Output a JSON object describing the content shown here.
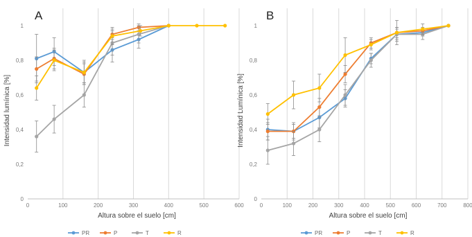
{
  "chart_data": [
    {
      "type": "line",
      "panel_label": "A",
      "xlabel": "Altura sobre el suelo [cm]",
      "ylabel": "Intensidad lumínica [%]",
      "xlim": [
        0,
        600
      ],
      "ylim": [
        0,
        1.1
      ],
      "xticks": [
        "0",
        "100",
        "200",
        "300",
        "400",
        "500",
        "600"
      ],
      "yticks": [
        "0",
        "0,2",
        "0,4",
        "0,6",
        "0,8",
        "1"
      ],
      "grid": "vertical",
      "legend_position": "bottom",
      "series": [
        {
          "name": "PR",
          "color": "#5B9BD5",
          "x": [
            25,
            75,
            160,
            240,
            315,
            400
          ],
          "y": [
            0.81,
            0.85,
            0.73,
            0.86,
            0.92,
            1.0
          ],
          "err": [
            0.14,
            0.08,
            0.07,
            0.07,
            0.05,
            0
          ]
        },
        {
          "name": "P",
          "color": "#ED7D31",
          "x": [
            25,
            75,
            160,
            240,
            315,
            400
          ],
          "y": [
            0.75,
            0.81,
            0.72,
            0.95,
            0.99,
            1.0
          ],
          "err": [
            0.07,
            0.06,
            0.06,
            0.03,
            0.02,
            0
          ]
        },
        {
          "name": "T",
          "color": "#A5A5A5",
          "x": [
            25,
            75,
            160,
            240,
            315,
            400
          ],
          "y": [
            0.36,
            0.46,
            0.6,
            0.9,
            0.95,
            1.0
          ],
          "err": [
            0.09,
            0.08,
            0.07,
            0.07,
            0.05,
            0
          ]
        },
        {
          "name": "R",
          "color": "#FFC000",
          "x": [
            25,
            75,
            160,
            240,
            320,
            400,
            480,
            560
          ],
          "y": [
            0.64,
            0.8,
            0.73,
            0.94,
            0.97,
            1.0,
            1.0,
            1.0
          ],
          "err": [
            0.07,
            0.06,
            0.06,
            0.05,
            0.03,
            0,
            0,
            0
          ]
        }
      ]
    },
    {
      "type": "line",
      "panel_label": "B",
      "xlabel": "Altura sobre el suelo [cm]",
      "ylabel": "Intensidad Lumínica [%]",
      "xlim": [
        0,
        800
      ],
      "ylim": [
        0,
        1.1
      ],
      "xticks": [
        "0",
        "100",
        "200",
        "300",
        "400",
        "500",
        "600",
        "700",
        "800"
      ],
      "yticks": [
        "0",
        "0,2",
        "0,4",
        "0,6",
        "0,8",
        "1"
      ],
      "grid": "vertical",
      "legend_position": "bottom",
      "series": [
        {
          "name": "PR",
          "color": "#5B9BD5",
          "x": [
            25,
            125,
            225,
            325,
            425,
            525,
            625,
            725
          ],
          "y": [
            0.4,
            0.39,
            0.47,
            0.58,
            0.81,
            0.95,
            0.96,
            1.0
          ],
          "err": [
            0.06,
            0.04,
            0.06,
            0.05,
            0.03,
            0.03,
            0.02,
            0
          ]
        },
        {
          "name": "P",
          "color": "#ED7D31",
          "x": [
            25,
            125,
            225,
            325,
            425,
            525,
            625,
            725
          ],
          "y": [
            0.39,
            0.39,
            0.53,
            0.72,
            0.9,
            0.96,
            0.97,
            1.0
          ],
          "err": [
            0.05,
            0.05,
            0.05,
            0.05,
            0.03,
            0.03,
            0.02,
            0
          ]
        },
        {
          "name": "T",
          "color": "#A5A5A5",
          "x": [
            25,
            125,
            225,
            325,
            425,
            525,
            625,
            725
          ],
          "y": [
            0.28,
            0.32,
            0.4,
            0.6,
            0.8,
            0.95,
            0.95,
            1.0
          ],
          "err": [
            0.08,
            0.07,
            0.07,
            0.06,
            0.04,
            0.04,
            0.03,
            0
          ]
        },
        {
          "name": "R",
          "color": "#FFC000",
          "x": [
            25,
            125,
            225,
            325,
            425,
            525,
            625,
            725
          ],
          "y": [
            0.49,
            0.6,
            0.64,
            0.83,
            0.89,
            0.96,
            0.98,
            1.0
          ],
          "err": [
            0.06,
            0.08,
            0.08,
            0.1,
            0.03,
            0.07,
            0.03,
            0
          ]
        }
      ]
    }
  ]
}
